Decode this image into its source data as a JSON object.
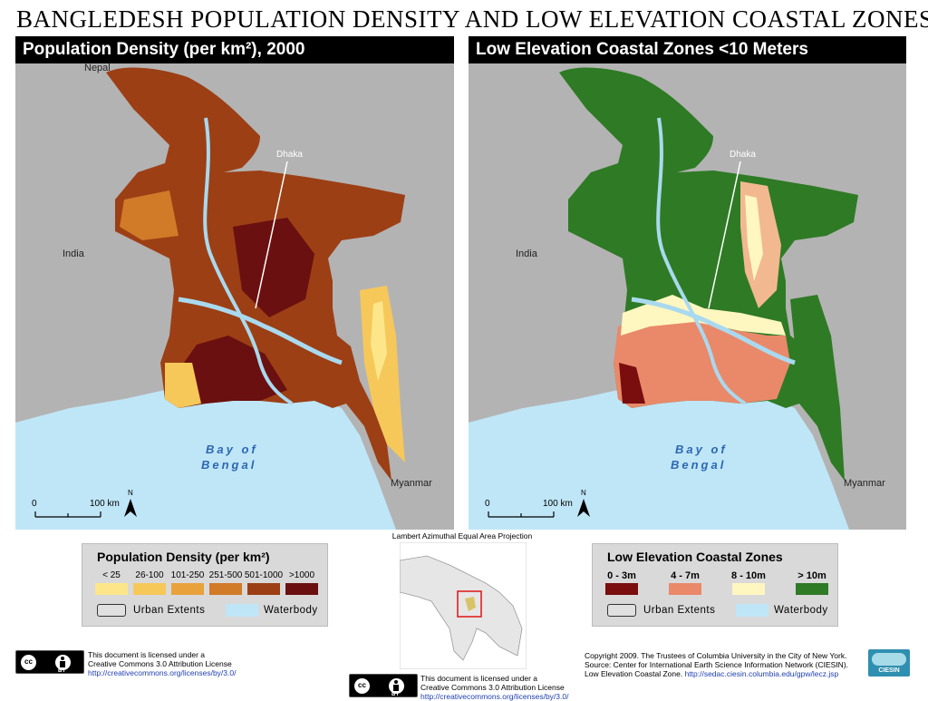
{
  "title": "BANGLEDESH POPULATION DENSITY AND LOW ELEVATION COASTAL ZONES",
  "left_panel": {
    "header": "Population Density (per km²), 2000",
    "labels": {
      "neighbor_north": "Nepal",
      "neighbor_west": "India",
      "neighbor_east": "Myanmar",
      "city": "Dhaka",
      "sea_line1": "Bay of",
      "sea_line2": "Bengal"
    },
    "scale": {
      "start": "0",
      "end": "100 km",
      "north": "N"
    }
  },
  "right_panel": {
    "header": "Low Elevation Coastal Zones <10 Meters",
    "labels": {
      "neighbor_west": "India",
      "neighbor_east": "Myanmar",
      "city": "Dhaka",
      "sea_line1": "Bay of",
      "sea_line2": "Bengal"
    },
    "scale": {
      "start": "0",
      "end": "100 km",
      "north": "N"
    }
  },
  "density_legend": {
    "title": "Population Density (per km²)",
    "classes": [
      {
        "label": "< 25",
        "color": "#fde68a"
      },
      {
        "label": "26-100",
        "color": "#f6c85a"
      },
      {
        "label": "101-250",
        "color": "#e9a23b"
      },
      {
        "label": "251-500",
        "color": "#d17a28"
      },
      {
        "label": "501-1000",
        "color": "#9c3f15"
      },
      {
        "label": ">1000",
        "color": "#6b1010"
      }
    ],
    "urban": "Urban Extents",
    "water": "Waterbody"
  },
  "lecz_legend": {
    "title": "Low Elevation Coastal Zones",
    "classes": [
      {
        "label": "0 - 3m",
        "color": "#7a0d0d"
      },
      {
        "label": "4 - 7m",
        "color": "#e9896a"
      },
      {
        "label": "8 - 10m",
        "color": "#fff6c0"
      },
      {
        "label": "> 10m",
        "color": "#2f7a25"
      }
    ],
    "urban": "Urban Extents",
    "water": "Waterbody"
  },
  "inset": {
    "projection": "Lambert Azimuthal Equal Area Projection"
  },
  "license_left": {
    "line1": "This document is licensed under a",
    "line2": "Creative Commons 3.0 Attribution License",
    "url": "http://creativecommons.org/licenses/by/3.0/"
  },
  "license_center": {
    "line1": "This document is licensed under a",
    "line2": "Creative Commons 3.0 Attribution License",
    "url": "http://creativecommons.org/licenses/by/3.0/"
  },
  "credits": {
    "line1": "Copyright 2009. The Trustees of Columbia University in the City of New York.",
    "line2": "Source: Center for International Earth Science Information Network (CIESIN).",
    "line3_text": "Low Elevation Coastal Zone. ",
    "line3_url": "http://sedac.ciesin.columbia.edu/gpw/lecz.jsp",
    "logo": "CIESIN"
  },
  "cc_badge": {
    "cc": "cc",
    "by": "BY"
  },
  "colors": {
    "land_other": "#b3b3b3",
    "water": "#bfe6f7",
    "river": "#a9d9ee",
    "panel_header": "#000000",
    "legend_bg": "#d9d9d9"
  }
}
